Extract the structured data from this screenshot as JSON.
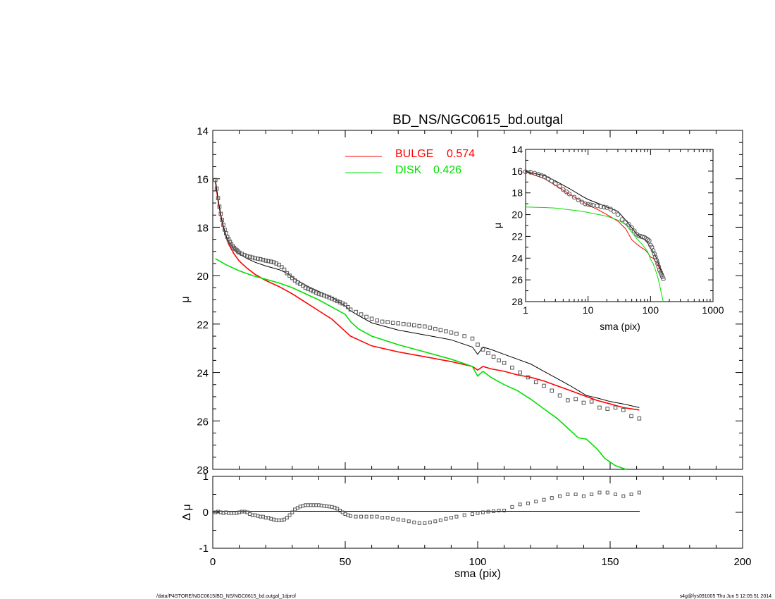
{
  "chart_data": [
    {
      "type": "line",
      "title": "BD_NS/NGC0615_bd.outgal",
      "xlabel": "",
      "ylabel": "μ",
      "xlim": [
        0,
        200
      ],
      "ylim": [
        28,
        14
      ],
      "y_ticks": [
        "14",
        "16",
        "18",
        "20",
        "22",
        "24",
        "26",
        "28"
      ],
      "legend": [
        {
          "name": "BULGE",
          "value": "0.574",
          "color": "#ff0000"
        },
        {
          "name": "DISK",
          "value": "0.426",
          "color": "#00e000"
        }
      ],
      "series": [
        {
          "name": "BULGE",
          "color": "#ff0000",
          "x": [
            1,
            2,
            3,
            4,
            5,
            6,
            8,
            10,
            13,
            16,
            20,
            25,
            30,
            35,
            40,
            45,
            50,
            52,
            55,
            60,
            70,
            80,
            90,
            98,
            100,
            102,
            105,
            110,
            115,
            120,
            125,
            130,
            135,
            140,
            145,
            150,
            155,
            161
          ],
          "y": [
            16.1,
            16.9,
            17.5,
            18.0,
            18.4,
            18.7,
            19.1,
            19.4,
            19.7,
            19.95,
            20.2,
            20.45,
            20.75,
            21.1,
            21.45,
            21.8,
            22.3,
            22.5,
            22.65,
            22.9,
            23.15,
            23.35,
            23.55,
            23.75,
            23.9,
            23.75,
            23.85,
            23.95,
            24.1,
            24.2,
            24.35,
            24.55,
            24.75,
            24.95,
            25.15,
            25.3,
            25.45,
            25.55
          ]
        },
        {
          "name": "DISK",
          "color": "#00e000",
          "x": [
            1,
            5,
            10,
            15,
            20,
            25,
            30,
            35,
            40,
            45,
            50,
            52,
            55,
            60,
            70,
            80,
            90,
            98,
            100,
            102,
            105,
            110,
            115,
            120,
            125,
            130,
            135,
            138,
            141,
            145,
            148,
            152,
            156
          ],
          "y": [
            19.3,
            19.55,
            19.8,
            20.0,
            20.15,
            20.3,
            20.5,
            20.75,
            21.0,
            21.3,
            21.6,
            21.9,
            22.2,
            22.5,
            22.85,
            23.15,
            23.45,
            23.75,
            24.15,
            23.95,
            24.2,
            24.5,
            24.75,
            25.1,
            25.5,
            25.9,
            26.4,
            26.7,
            26.75,
            27.15,
            27.55,
            27.85,
            28.0
          ]
        },
        {
          "name": "",
          "color": "#000000",
          "x": [
            1,
            2,
            3,
            4,
            5,
            6,
            8,
            10,
            13,
            16,
            20,
            25,
            28,
            32,
            36,
            40,
            45,
            50,
            52,
            55,
            60,
            70,
            80,
            90,
            98,
            100,
            102,
            105,
            110,
            115,
            120,
            125,
            130,
            135,
            138,
            141,
            145,
            150,
            155,
            161
          ],
          "y": [
            16.05,
            16.85,
            17.5,
            17.95,
            18.35,
            18.6,
            18.9,
            19.1,
            19.3,
            19.45,
            19.6,
            19.75,
            19.9,
            20.2,
            20.45,
            20.65,
            20.9,
            21.25,
            21.45,
            21.65,
            21.95,
            22.25,
            22.45,
            22.65,
            22.95,
            23.25,
            22.95,
            23.05,
            23.25,
            23.45,
            23.65,
            23.95,
            24.25,
            24.55,
            24.75,
            24.95,
            25.05,
            25.2,
            25.3,
            25.45
          ]
        },
        {
          "name": "",
          "type": "scatter",
          "marker": "square",
          "color": "#555555",
          "x": [
            1,
            1.5,
            2,
            2.5,
            3,
            3.5,
            4,
            4.5,
            5,
            5.5,
            6,
            6.5,
            7,
            7.5,
            8,
            8.5,
            9,
            9.5,
            10,
            11,
            12,
            13,
            14,
            15,
            16,
            17,
            18,
            19,
            20,
            21,
            22,
            23,
            24,
            25,
            26,
            27,
            28,
            29,
            30,
            31,
            32,
            33,
            34,
            35,
            36,
            37,
            38,
            39,
            40,
            41,
            42,
            43,
            44,
            45,
            46,
            47,
            48,
            49,
            50,
            51,
            52,
            54,
            56,
            58,
            60,
            62,
            64,
            66,
            68,
            70,
            72,
            74,
            76,
            78,
            80,
            82,
            84,
            86,
            88,
            90,
            92,
            95,
            98,
            100,
            102,
            104,
            106,
            108,
            110,
            113,
            116,
            119,
            122,
            125,
            128,
            131,
            134,
            137,
            140,
            143,
            146,
            149,
            152,
            155,
            158,
            161
          ],
          "y": [
            16.05,
            16.4,
            16.8,
            17.15,
            17.45,
            17.7,
            17.9,
            18.1,
            18.25,
            18.4,
            18.5,
            18.6,
            18.7,
            18.78,
            18.85,
            18.9,
            18.95,
            19.0,
            19.05,
            19.1,
            19.15,
            19.2,
            19.22,
            19.25,
            19.28,
            19.3,
            19.32,
            19.35,
            19.38,
            19.4,
            19.42,
            19.45,
            19.5,
            19.55,
            19.65,
            19.75,
            19.9,
            20.0,
            20.1,
            20.2,
            20.28,
            20.35,
            20.42,
            20.5,
            20.55,
            20.6,
            20.65,
            20.7,
            20.75,
            20.78,
            20.82,
            20.86,
            20.9,
            20.95,
            21.0,
            21.05,
            21.1,
            21.15,
            21.2,
            21.3,
            21.4,
            21.5,
            21.6,
            21.7,
            21.78,
            21.85,
            21.9,
            21.92,
            21.95,
            21.97,
            22.0,
            22.02,
            22.05,
            22.08,
            22.1,
            22.15,
            22.2,
            22.25,
            22.3,
            22.35,
            22.4,
            22.5,
            22.6,
            22.85,
            23.05,
            23.2,
            23.35,
            23.5,
            23.6,
            23.8,
            24.0,
            24.2,
            24.4,
            24.55,
            24.75,
            24.95,
            25.15,
            25.1,
            25.25,
            25.2,
            25.45,
            25.5,
            25.45,
            25.55,
            25.8,
            25.9
          ]
        }
      ]
    },
    {
      "type": "scatter",
      "xlabel": "",
      "ylabel": "μ",
      "xscale": "log",
      "xlim": [
        1,
        1000
      ],
      "ylim": [
        28,
        14
      ],
      "x_ticks": [
        "1",
        "10",
        "100",
        "1000"
      ],
      "y_ticks": [
        "14",
        "16",
        "18",
        "20",
        "22",
        "24",
        "26",
        "28"
      ],
      "series": [
        {
          "name": "",
          "color": "#ff0000",
          "x": [
            1,
            2,
            3,
            5,
            8,
            10,
            15,
            20,
            30,
            40,
            50,
            60,
            70,
            80,
            90,
            100,
            110,
            120,
            130,
            140,
            150,
            160
          ],
          "y": [
            16.05,
            16.7,
            17.3,
            18.1,
            18.8,
            19.1,
            19.6,
            20.0,
            20.6,
            21.3,
            22.3,
            22.7,
            23.0,
            23.2,
            23.5,
            23.9,
            24.0,
            24.3,
            24.6,
            25.0,
            25.3,
            25.5
          ]
        },
        {
          "name": "",
          "color": "#00e000",
          "x": [
            1,
            2,
            3,
            5,
            8,
            10,
            15,
            20,
            30,
            40,
            50,
            60,
            70,
            80,
            90,
            100,
            110,
            120,
            130,
            140,
            150,
            160
          ],
          "y": [
            19.3,
            19.35,
            19.4,
            19.55,
            19.7,
            19.8,
            20.0,
            20.15,
            20.5,
            20.9,
            21.6,
            22.2,
            22.6,
            23.0,
            23.4,
            24.1,
            24.5,
            25.1,
            25.7,
            26.5,
            27.3,
            28.0
          ]
        },
        {
          "name": "",
          "color": "#000000",
          "x": [
            1,
            2,
            3,
            5,
            8,
            10,
            15,
            20,
            30,
            40,
            50,
            60,
            70,
            80,
            90,
            100,
            110,
            120,
            130,
            140,
            150,
            160
          ],
          "y": [
            16.05,
            16.4,
            16.9,
            17.6,
            18.3,
            18.6,
            19.0,
            19.3,
            19.7,
            20.5,
            21.2,
            21.8,
            22.1,
            22.3,
            22.6,
            23.1,
            23.4,
            23.8,
            24.3,
            24.8,
            25.2,
            25.5
          ]
        },
        {
          "name": "",
          "type": "scatter",
          "marker": "circle",
          "color": "#555555",
          "x": [
            1,
            1.2,
            1.4,
            1.6,
            1.8,
            2,
            2.3,
            2.6,
            3,
            3.5,
            4,
            4.5,
            5,
            6,
            7,
            8,
            9,
            10,
            11,
            12,
            14,
            16,
            18,
            20,
            23,
            26,
            30,
            35,
            40,
            45,
            50,
            55,
            60,
            65,
            70,
            75,
            80,
            85,
            90,
            95,
            100,
            105,
            110,
            115,
            120,
            125,
            130,
            135,
            140,
            145,
            150,
            155,
            160
          ],
          "y": [
            16.05,
            16.1,
            16.2,
            16.3,
            16.4,
            16.5,
            16.7,
            16.9,
            17.15,
            17.4,
            17.7,
            17.9,
            18.1,
            18.4,
            18.65,
            18.85,
            19.0,
            19.05,
            19.1,
            19.15,
            19.2,
            19.25,
            19.3,
            19.35,
            19.5,
            19.7,
            20.0,
            20.45,
            20.7,
            20.9,
            21.2,
            21.5,
            21.8,
            21.95,
            22.0,
            22.05,
            22.1,
            22.2,
            22.3,
            22.4,
            22.8,
            23.0,
            23.3,
            23.6,
            23.9,
            24.2,
            24.5,
            24.8,
            25.1,
            25.3,
            25.5,
            25.7,
            25.9
          ]
        }
      ]
    },
    {
      "type": "scatter",
      "xlabel": "sma (pix)",
      "ylabel": "Δ μ",
      "xlim": [
        0,
        200
      ],
      "ylim": [
        -1,
        1
      ],
      "x_ticks": [
        "0",
        "50",
        "100",
        "150",
        "200"
      ],
      "y_ticks": [
        "1",
        "0",
        "-1"
      ],
      "series": [
        {
          "name": "",
          "marker": "square",
          "color": "#555555",
          "x": [
            1,
            2,
            3,
            4,
            5,
            6,
            7,
            8,
            9,
            10,
            11,
            12,
            13,
            14,
            15,
            16,
            17,
            18,
            19,
            20,
            21,
            22,
            23,
            24,
            25,
            26,
            27,
            28,
            29,
            30,
            31,
            32,
            33,
            34,
            35,
            36,
            37,
            38,
            39,
            40,
            41,
            42,
            43,
            44,
            45,
            46,
            47,
            48,
            49,
            50,
            51,
            52,
            54,
            56,
            58,
            60,
            62,
            64,
            66,
            68,
            70,
            72,
            74,
            76,
            78,
            80,
            82,
            84,
            86,
            88,
            90,
            92,
            95,
            98,
            100,
            102,
            104,
            106,
            108,
            110,
            113,
            116,
            119,
            122,
            125,
            128,
            131,
            134,
            137,
            140,
            143,
            146,
            149,
            152,
            155,
            158,
            161
          ],
          "y": [
            0.0,
            0.02,
            0.0,
            -0.02,
            0.0,
            -0.02,
            -0.02,
            -0.02,
            -0.02,
            0.0,
            0.02,
            0.02,
            0.0,
            -0.05,
            -0.08,
            -0.08,
            -0.1,
            -0.12,
            -0.12,
            -0.15,
            -0.15,
            -0.18,
            -0.2,
            -0.22,
            -0.22,
            -0.22,
            -0.2,
            -0.15,
            -0.08,
            0.0,
            0.08,
            0.12,
            0.16,
            0.18,
            0.2,
            0.2,
            0.2,
            0.2,
            0.2,
            0.2,
            0.19,
            0.18,
            0.17,
            0.16,
            0.15,
            0.13,
            0.1,
            0.05,
            0.0,
            -0.05,
            -0.08,
            -0.1,
            -0.12,
            -0.12,
            -0.12,
            -0.12,
            -0.12,
            -0.15,
            -0.15,
            -0.18,
            -0.2,
            -0.22,
            -0.25,
            -0.28,
            -0.3,
            -0.3,
            -0.28,
            -0.25,
            -0.22,
            -0.18,
            -0.15,
            -0.12,
            -0.08,
            -0.05,
            -0.02,
            0.0,
            0.02,
            0.03,
            0.05,
            0.05,
            0.15,
            0.22,
            0.25,
            0.3,
            0.35,
            0.4,
            0.45,
            0.5,
            0.5,
            0.45,
            0.5,
            0.55,
            0.55,
            0.5,
            0.45,
            0.5,
            0.55
          ]
        }
      ]
    }
  ],
  "footer": {
    "left": "/data/P4STORE/NGC0615/BD_NS/NGC0615_bd.outgal_1dprof",
    "right": "s4g@fys091005  Thu Jun  5 12:05:51 2014"
  },
  "inset_xlabel": "sma (pix)"
}
